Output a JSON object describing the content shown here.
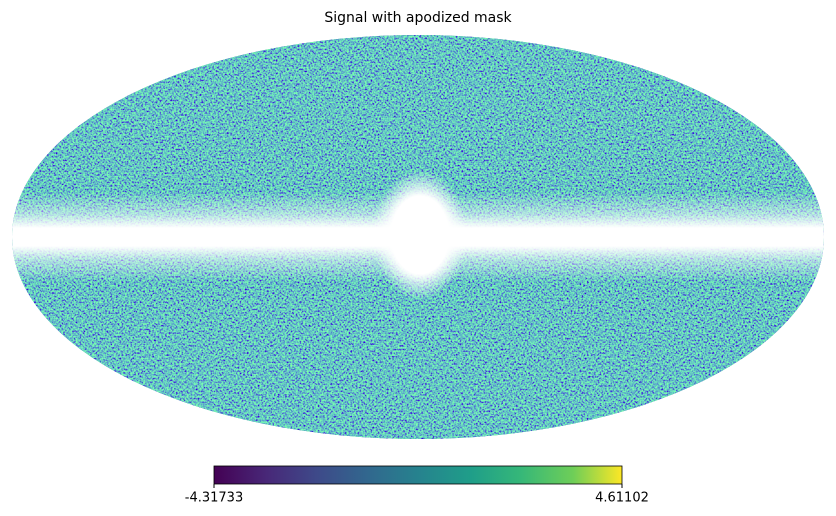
{
  "chart_data": {
    "type": "mollweide",
    "title": "Signal with apodized mask",
    "cmap": "viridis",
    "colorbar": {
      "lim": [
        -4.31733,
        4.61102
      ],
      "ticks": [
        -4.31733,
        4.61102
      ]
    }
  }
}
